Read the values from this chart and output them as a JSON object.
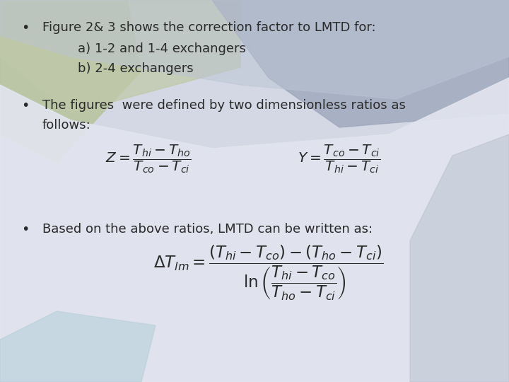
{
  "bullet1_line1": "Figure 2& 3 shows the correction factor to LMTD for:",
  "bullet1_line2": "a) 1-2 and 1-4 exchangers",
  "bullet1_line3": "b) 2-4 exchangers",
  "bullet2_line1": "The figures  were defined by two dimensionless ratios as",
  "bullet2_line2": "follows:",
  "bullet3_line1": "Based on the above ratios, LMTD can be written as:",
  "formula1": "$Z = \\dfrac{T_{hi} - T_{ho}}{T_{co} - T_{ci}}$",
  "formula2": "$Y = \\dfrac{T_{co} - T_{ci}}{T_{hi} - T_{ci}}$",
  "formula3": "$\\Delta T_{lm} = \\dfrac{(T_{hi} - T_{co}) - (T_{ho} - T_{ci})}{\\ln\\left(\\dfrac{T_{hi} - T_{co}}{T_{ho} - T_{ci}}\\right)}$",
  "text_color": "#2a2a2a",
  "bg_color": "#d8dbe6",
  "bg_white": "#e8eaef",
  "bg_green": "#b8c4a4",
  "bg_gray_right": "#9fa8b8",
  "bg_blue_mid": "#bfc8d8",
  "bg_bottom_blue": "#b8ccd8",
  "fontsize_text": 13.0,
  "fontsize_formula": 14.5
}
